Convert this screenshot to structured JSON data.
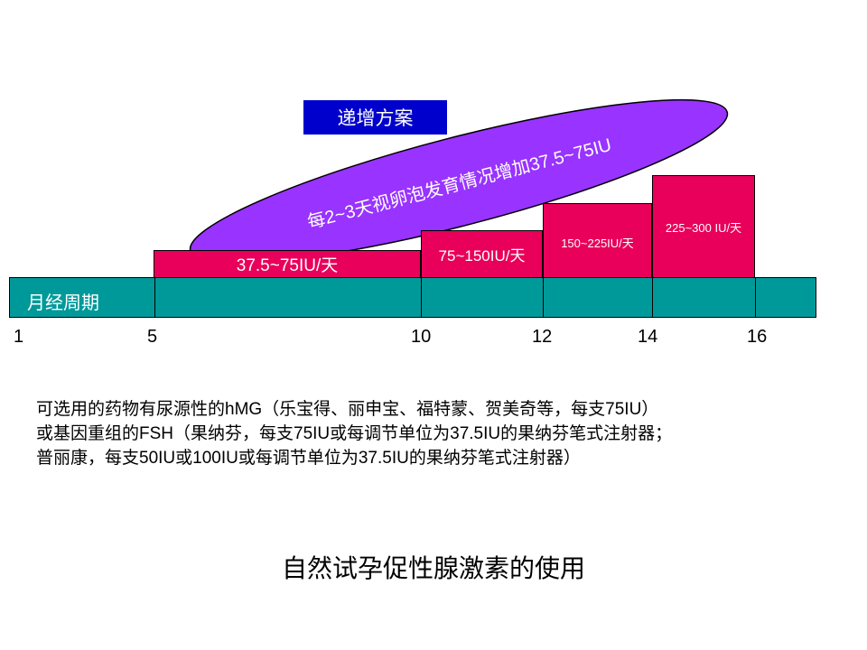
{
  "scheme_label": "递增方案",
  "ellipse_text": "每2~3天视卵泡发育情况增加37.5~75IU",
  "dose_bars": [
    {
      "label": "37.5~75IU/天",
      "start": 5,
      "end": 10
    },
    {
      "label": "75~150IU/天",
      "start": 10,
      "end": 12
    },
    {
      "label": "150~225IU/天",
      "start": 12,
      "end": 14
    },
    {
      "label": "225~300 IU/天",
      "start": 14,
      "end": 16
    }
  ],
  "cycle_label": "月经周期",
  "day_ticks": [
    "1",
    "5",
    "10",
    "12",
    "14",
    "16"
  ],
  "note_lines": [
    "可选用的药物有尿源性的hMG（乐宝得、丽申宝、福特蒙、贺美奇等，每支75IU）",
    "或基因重组的FSH（果纳芬，每支75IU或每调节单位为37.5IU的果纳芬笔式注射器；",
    "普丽康，每支50IU或100IU或每调节单位为37.5IU的果纳芬笔式注射器）"
  ],
  "footer_title": "自然试孕促性腺激素的使用",
  "colors": {
    "bar": "#e8005a",
    "cycle": "#009999",
    "ellipse": "#9933ff",
    "label_box": "#0000cc"
  }
}
